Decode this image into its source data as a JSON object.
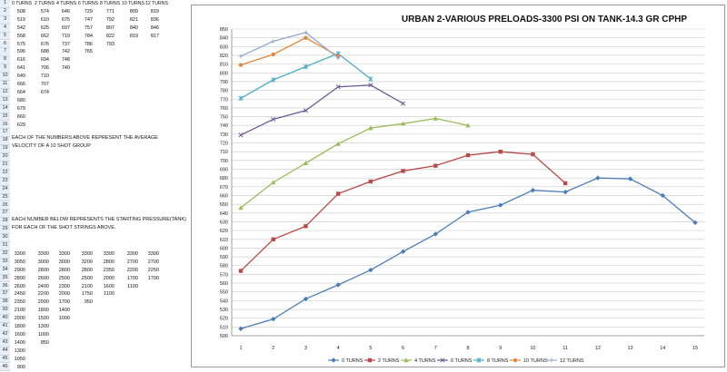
{
  "sheet": {
    "row_numbers": [
      "1",
      "2",
      "3",
      "4",
      "5",
      "6",
      "7",
      "8",
      "9",
      "10",
      "11",
      "12",
      "13",
      "14",
      "15",
      "16",
      "17",
      "18",
      "19",
      "20",
      "21",
      "22",
      "23",
      "24",
      "25",
      "26",
      "27",
      "28",
      "29",
      "30",
      "31",
      "32",
      "33",
      "34",
      "35",
      "36",
      "37",
      "38",
      "39",
      "40",
      "41",
      "42",
      "43",
      "44",
      "45",
      "46"
    ],
    "headers": [
      "0 TURNS",
      "2 TURNS",
      "4 TURNS",
      "6 TURNS",
      "8 TURNS",
      "10 TURNS",
      "12 TURNS"
    ],
    "velocity_rows": [
      [
        "508",
        "574",
        "646",
        "729",
        "771",
        "809",
        "819"
      ],
      [
        "519",
        "610",
        "675",
        "747",
        "792",
        "821",
        "836"
      ],
      [
        "542",
        "625",
        "697",
        "757",
        "807",
        "840",
        "846"
      ],
      [
        "558",
        "662",
        "719",
        "784",
        "822",
        "819",
        "817"
      ],
      [
        "575",
        "676",
        "737",
        "786",
        "793",
        "",
        ""
      ],
      [
        "596",
        "688",
        "742",
        "765",
        "",
        "",
        ""
      ],
      [
        "616",
        "694",
        "748",
        "",
        "",
        "",
        ""
      ],
      [
        "641",
        "706",
        "740",
        "",
        "",
        "",
        ""
      ],
      [
        "649",
        "710",
        "",
        "",
        "",
        "",
        ""
      ],
      [
        "666",
        "707",
        "",
        "",
        "",
        "",
        ""
      ],
      [
        "664",
        "674",
        "",
        "",
        "",
        "",
        ""
      ],
      [
        "680",
        "",
        "",
        "",
        "",
        "",
        ""
      ],
      [
        "679",
        "",
        "",
        "",
        "",
        "",
        ""
      ],
      [
        "660",
        "",
        "",
        "",
        "",
        "",
        ""
      ],
      [
        "629",
        "",
        "",
        "",
        "",
        "",
        ""
      ]
    ],
    "note1_line1": "EACH OF THE NUMBERS ABOVE REPRESENT THE AVERAGE",
    "note1_line2": "VELOCITY OF A 10 SHOT GROUP",
    "note2_line1": "EACH NUMBER BELOW REPRESENTS THE STARTING PRESSURE(TANK)",
    "note2_line2": "FOR EACH OF THE SHOT STRINGS ABOVE.",
    "pressure_rows": [
      [
        "3300",
        "3300",
        "3300",
        "3300",
        "3300",
        "3300",
        "3300"
      ],
      [
        "3050",
        "3000",
        "3000",
        "3200",
        "2800",
        "2700",
        "2700"
      ],
      [
        "2900",
        "2800",
        "2800",
        "2800",
        "2350",
        "2200",
        "2250"
      ],
      [
        "2800",
        "2600",
        "2500",
        "2500",
        "2000",
        "1700",
        "1700"
      ],
      [
        "2600",
        "2400",
        "2300",
        "2100",
        "1600",
        "1100",
        ""
      ],
      [
        "2450",
        "2200",
        "2000",
        "1750",
        "1100",
        "",
        ""
      ],
      [
        "2350",
        "2000",
        "1700",
        "950",
        "",
        "",
        ""
      ],
      [
        "2100",
        "1800",
        "1400",
        "",
        "",
        "",
        ""
      ],
      [
        "2000",
        "1500",
        "1000",
        "",
        "",
        "",
        ""
      ],
      [
        "1800",
        "1300",
        "",
        "",
        "",
        "",
        ""
      ],
      [
        "1600",
        "1000",
        "",
        "",
        "",
        "",
        ""
      ],
      [
        "1400",
        "850",
        "",
        "",
        "",
        "",
        ""
      ],
      [
        "1300",
        "",
        "",
        "",
        "",
        "",
        ""
      ],
      [
        "1050",
        "",
        "",
        "",
        "",
        "",
        ""
      ],
      [
        "900",
        "",
        "",
        "",
        "",
        "",
        ""
      ]
    ]
  },
  "chart_data": {
    "type": "line",
    "title": "URBAN 2-VARIOUS PRELOADS-3300 PSI ON TANK-14.3 GR CPHP",
    "xlabel": "",
    "ylabel": "",
    "ylim": [
      500,
      850
    ],
    "y_ticks": [
      "500",
      "510",
      "520",
      "530",
      "540",
      "550",
      "560",
      "570",
      "580",
      "590",
      "600",
      "610",
      "620",
      "630",
      "640",
      "650",
      "660",
      "670",
      "680",
      "690",
      "700",
      "710",
      "720",
      "730",
      "740",
      "750",
      "760",
      "770",
      "780",
      "790",
      "800",
      "810",
      "820",
      "830",
      "840",
      "850"
    ],
    "x_ticks": [
      "1",
      "2",
      "3",
      "4",
      "5",
      "6",
      "7",
      "8",
      "9",
      "10",
      "11",
      "12",
      "13",
      "14",
      "15"
    ],
    "grid": true,
    "legend_position": "bottom",
    "series": [
      {
        "name": "0 TURNS",
        "color": "#4a7eba",
        "marker": "diamond",
        "values": [
          508,
          519,
          542,
          558,
          575,
          596,
          616,
          641,
          649,
          666,
          664,
          680,
          679,
          660,
          629
        ]
      },
      {
        "name": "2 TURNS",
        "color": "#b84a47",
        "marker": "square",
        "values": [
          574,
          610,
          625,
          662,
          676,
          688,
          694,
          706,
          710,
          707,
          674
        ]
      },
      {
        "name": "4 TURNS",
        "color": "#9bbb59",
        "marker": "triangle",
        "values": [
          646,
          675,
          697,
          719,
          737,
          742,
          748,
          740
        ]
      },
      {
        "name": "6 TURNS",
        "color": "#6b5b95",
        "marker": "x",
        "values": [
          729,
          747,
          757,
          784,
          786,
          765
        ]
      },
      {
        "name": "8 TURNS",
        "color": "#4bacc6",
        "marker": "star",
        "values": [
          771,
          792,
          807,
          822,
          793
        ]
      },
      {
        "name": "10 TURNS",
        "color": "#e0883c",
        "marker": "circle",
        "values": [
          809,
          821,
          840,
          819
        ]
      },
      {
        "name": "12 TURNS",
        "color": "#93a9cf",
        "marker": "plus",
        "values": [
          819,
          836,
          846,
          817
        ]
      }
    ]
  }
}
